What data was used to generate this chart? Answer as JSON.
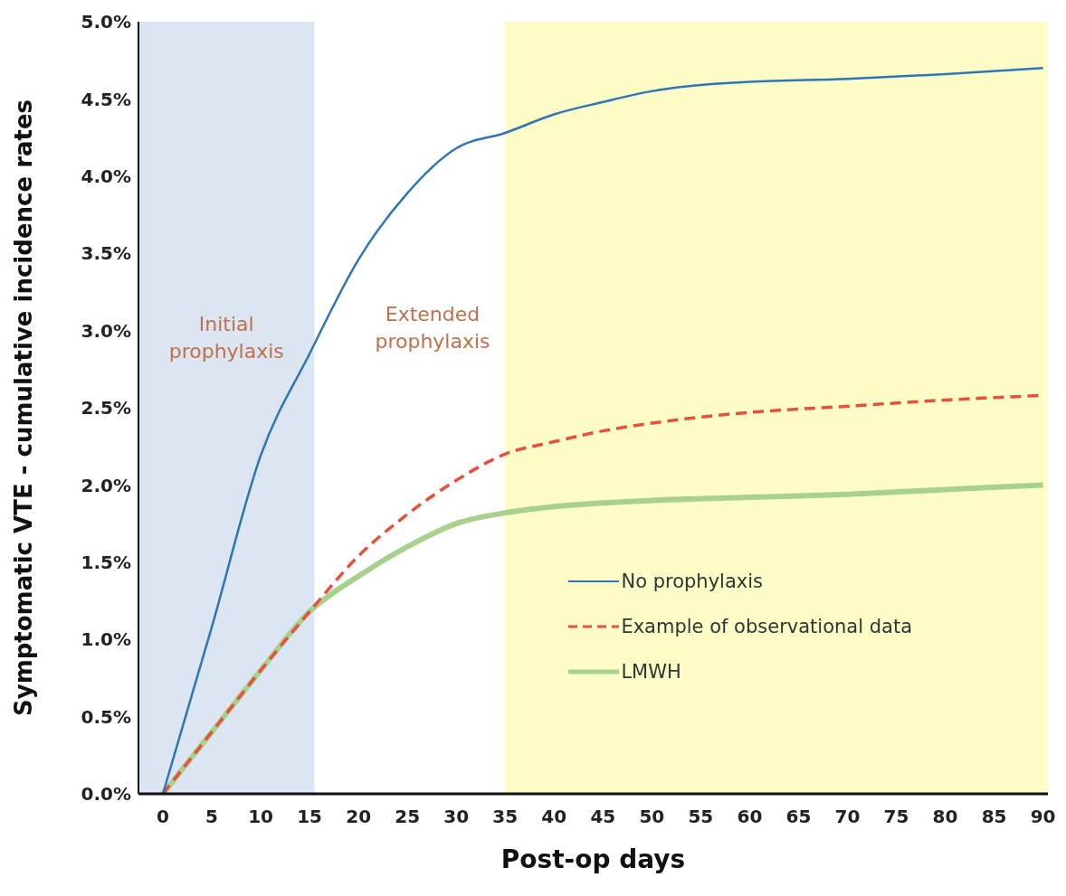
{
  "chart_data": {
    "type": "line",
    "xlabel": "Post-op days",
    "ylabel": "Symptomatic VTE - cumulative incidence rates",
    "xlim": [
      -2.5,
      90.5
    ],
    "xticks": [
      0,
      5,
      10,
      15,
      20,
      25,
      30,
      35,
      40,
      45,
      50,
      55,
      60,
      65,
      70,
      75,
      80,
      85,
      90
    ],
    "ylim": [
      0,
      5
    ],
    "yticks": [
      {
        "value": 0,
        "label": "0.0%"
      },
      {
        "value": 0.5,
        "label": "0.5%"
      },
      {
        "value": 1,
        "label": "1.0%"
      },
      {
        "value": 1.5,
        "label": "1.5%"
      },
      {
        "value": 2,
        "label": "2.0%"
      },
      {
        "value": 2.5,
        "label": "2.5%"
      },
      {
        "value": 3,
        "label": "3.0%"
      },
      {
        "value": 3.5,
        "label": "3.5%"
      },
      {
        "value": 4,
        "label": "4.0%"
      },
      {
        "value": 4.5,
        "label": "4.5%"
      },
      {
        "value": 5,
        "label": "5.0%"
      }
    ],
    "legend": "bottom right",
    "marker": "none",
    "bands": [
      {
        "axis": "x",
        "from": -2.5,
        "to": 15.5,
        "label": "Initial prophylaxis",
        "color": "#dce6f2"
      },
      {
        "axis": "x",
        "from": 35,
        "to": 90.5,
        "color": "#fdfdc8"
      }
    ],
    "annotations": [
      "Extended prophylaxis"
    ],
    "series": [
      {
        "name": "No prophylaxis",
        "color": "#2e75b6",
        "line_style": "solid",
        "x": [
          0,
          5,
          10,
          15,
          20,
          25,
          30,
          35,
          40,
          45,
          50,
          55,
          60,
          70,
          80,
          90
        ],
        "values": [
          0,
          1.08,
          2.19,
          2.85,
          3.46,
          3.89,
          4.18,
          4.28,
          4.4,
          4.48,
          4.55,
          4.59,
          4.61,
          4.63,
          4.66,
          4.7
        ]
      },
      {
        "name": "Example of observational data",
        "color": "#e8503a",
        "line_style": "dashed",
        "x": [
          0,
          5,
          10,
          15,
          20,
          25,
          30,
          35,
          40,
          45,
          50,
          55,
          60,
          70,
          80,
          90
        ],
        "values": [
          0,
          0.4,
          0.8,
          1.18,
          1.54,
          1.81,
          2.03,
          2.2,
          2.28,
          2.35,
          2.4,
          2.44,
          2.47,
          2.51,
          2.55,
          2.58
        ]
      },
      {
        "name": "LMWH",
        "color": "#a9d18e",
        "line_style": "solid",
        "x": [
          0,
          5,
          10,
          15,
          20,
          25,
          30,
          35,
          40,
          50,
          60,
          70,
          80,
          90
        ],
        "values": [
          0,
          0.4,
          0.8,
          1.18,
          1.41,
          1.6,
          1.75,
          1.82,
          1.86,
          1.9,
          1.92,
          1.94,
          1.97,
          2.0
        ]
      }
    ]
  }
}
